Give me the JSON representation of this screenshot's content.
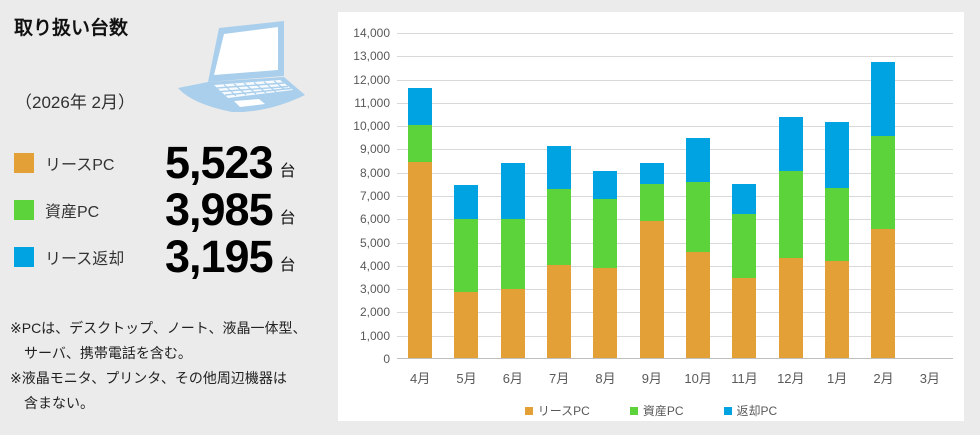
{
  "page": {
    "background": "#EBEBEB"
  },
  "panel": {
    "title": "取り扱い台数",
    "date": "（2026年 2月）",
    "laptop_icon_color": "#A9CFEC",
    "stats": [
      {
        "label": "リースPC",
        "value": "5,523",
        "unit": "台",
        "color": "#E2A037"
      },
      {
        "label": "資産PC",
        "value": "3,985",
        "unit": "台",
        "color": "#5CD33A"
      },
      {
        "label": "リース返却",
        "value": "3,195",
        "unit": "台",
        "color": "#00A3E2"
      }
    ],
    "notes": [
      "※PCは、デスクトップ、ノート、液晶一体型、",
      "　サーバ、携帯電話を含む。",
      "※液晶モニタ、プリンタ、その他周辺機器は",
      "　含まない。"
    ]
  },
  "chart_data": {
    "type": "bar",
    "stacked": true,
    "title": "",
    "categories": [
      "4月",
      "5月",
      "6月",
      "7月",
      "8月",
      "9月",
      "10月",
      "11月",
      "12月",
      "1月",
      "2月",
      "3月"
    ],
    "series": [
      {
        "name": "リースPC",
        "color": "#E2A037",
        "values": [
          8400,
          2850,
          2950,
          4000,
          3850,
          5900,
          4550,
          3450,
          4300,
          4150,
          5523,
          0
        ]
      },
      {
        "name": "資産PC",
        "color": "#5CD33A",
        "values": [
          1600,
          3150,
          3000,
          3250,
          2950,
          1600,
          3000,
          2750,
          3750,
          3150,
          3985,
          0
        ]
      },
      {
        "name": "返却PC",
        "color": "#00A3E2",
        "values": [
          1600,
          1450,
          2400,
          1850,
          1200,
          900,
          1900,
          1300,
          2300,
          2850,
          3195,
          0
        ]
      }
    ],
    "ylim": [
      0,
      14000
    ],
    "ytick_step": 1000,
    "yticks": [
      "0",
      "1,000",
      "2,000",
      "3,000",
      "4,000",
      "5,000",
      "6,000",
      "7,000",
      "8,000",
      "9,000",
      "10,000",
      "11,000",
      "12,000",
      "13,000",
      "14,000"
    ],
    "grid": true,
    "legend_position": "bottom",
    "axis_text_color": "#595959",
    "gridline_color": "#D9D9D9"
  }
}
